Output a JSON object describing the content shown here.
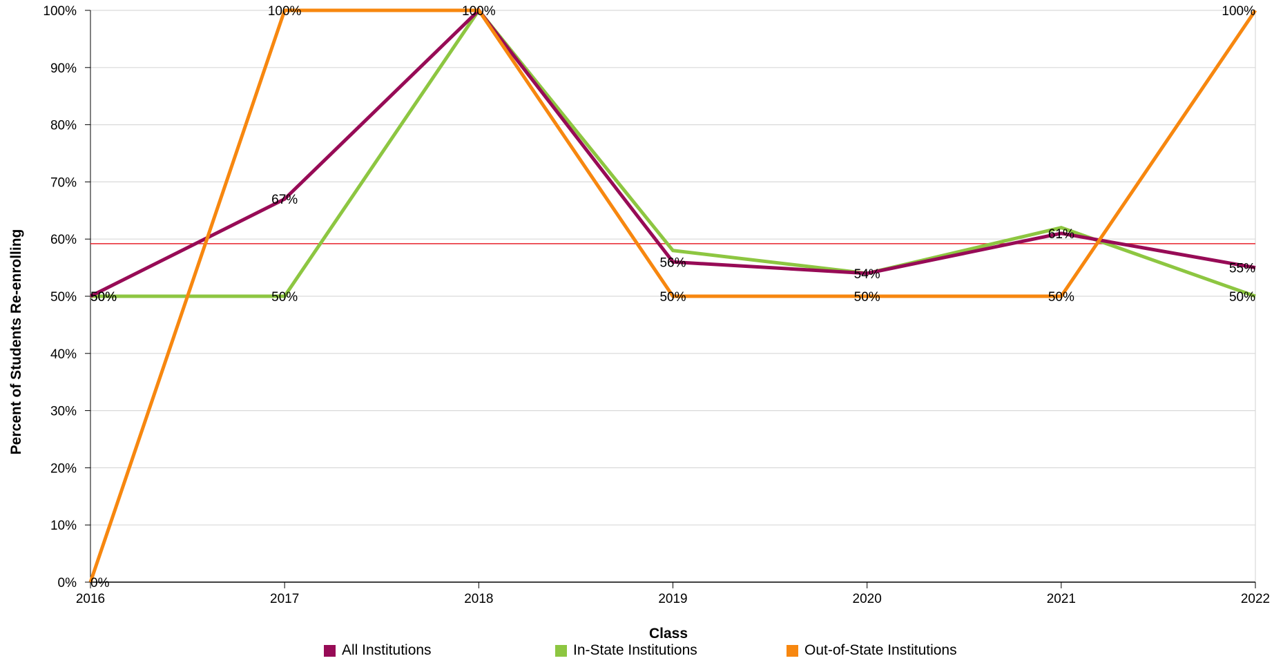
{
  "chart_data": {
    "type": "line",
    "xlabel": "Class",
    "ylabel": "Percent of Students Re-enrolling",
    "categories": [
      "2016",
      "2017",
      "2018",
      "2019",
      "2020",
      "2021",
      "2022"
    ],
    "ylim": [
      0,
      100
    ],
    "yticks": [
      "0%",
      "10%",
      "20%",
      "30%",
      "40%",
      "50%",
      "60%",
      "70%",
      "80%",
      "90%",
      "100%"
    ],
    "grid": true,
    "legend_position": "bottom",
    "reference_line": {
      "value": 59.2,
      "color": "#e8202a"
    },
    "series": [
      {
        "name": "All Institutions",
        "color": "#970b56",
        "values": [
          50,
          67,
          100,
          56,
          54,
          61,
          55
        ],
        "labels": [
          "50%",
          "67%",
          "100%",
          "56%",
          "54%",
          "61%",
          "55%"
        ]
      },
      {
        "name": "In-State Institutions",
        "color": "#8dc641",
        "values": [
          50,
          50,
          100,
          58,
          54,
          62,
          50
        ],
        "labels": [
          "50%",
          "50%",
          "",
          "",
          "",
          "",
          "50%"
        ]
      },
      {
        "name": "Out-of-State Institutions",
        "color": "#f7870f",
        "values": [
          0,
          100,
          100,
          50,
          50,
          50,
          100
        ],
        "labels": [
          "0%",
          "100%",
          "",
          "50%",
          "50%",
          "50%",
          "100%"
        ]
      }
    ]
  }
}
